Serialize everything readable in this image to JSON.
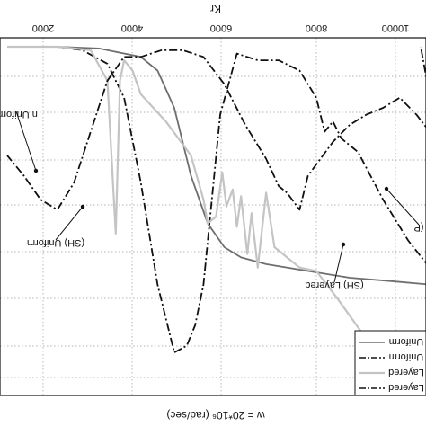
{
  "chart_data": {
    "type": "line",
    "orientation": "rotated-180",
    "xlabel": "w = 20*10⁶  (rad/sec)",
    "top_axis_label": "Kr",
    "top_ticks": [
      "2000",
      "4000",
      "6000",
      "8000",
      "10000"
    ],
    "xlim": [
      1000,
      11200
    ],
    "ylim": [
      0,
      1
    ],
    "grid": true,
    "legend_position": "bottom-right",
    "series": [
      {
        "name": "Uniform",
        "color": "#6e6e6e",
        "style": "solid",
        "x": [
          1000,
          2000,
          3000,
          4000,
          5000,
          5600,
          6000,
          6400,
          6800,
          7200,
          7600,
          8000,
          9000,
          10000,
          11200
        ],
        "y": [
          0.3,
          0.31,
          0.32,
          0.34,
          0.36,
          0.38,
          0.41,
          0.48,
          0.62,
          0.82,
          0.93,
          0.97,
          0.995,
          1.0,
          1.0
        ]
      },
      {
        "name": "Uniform",
        "color": "#111111",
        "style": "dashdot",
        "x": [
          1000,
          1600,
          2200,
          2800,
          3200,
          3400,
          3600,
          3800,
          4200,
          4700,
          5200,
          5700,
          6100,
          6300,
          6500,
          6700,
          6900,
          7200,
          7600,
          8000,
          8400,
          8800,
          9400,
          10000,
          11200
        ],
        "y": [
          0.35,
          0.43,
          0.55,
          0.69,
          0.73,
          0.78,
          0.75,
          0.85,
          0.93,
          0.96,
          0.96,
          0.98,
          0.8,
          0.55,
          0.3,
          0.18,
          0.12,
          0.1,
          0.3,
          0.6,
          0.85,
          0.95,
          0.99,
          1.0,
          1.0
        ]
      },
      {
        "name": "Layered",
        "color": "#c4c4c4",
        "style": "solid",
        "x": [
          1000,
          1800,
          2600,
          3300,
          3800,
          4200,
          4800,
          5000,
          5200,
          5350,
          5450,
          5600,
          5700,
          5800,
          5950,
          6050,
          6200,
          6400,
          6500,
          6800,
          7400,
          8000,
          8200,
          8400,
          8500,
          8600,
          8800,
          9200,
          10000,
          11200
        ],
        "y": [
          0.02,
          0.07,
          0.14,
          0.26,
          0.34,
          0.35,
          0.41,
          0.57,
          0.35,
          0.51,
          0.39,
          0.56,
          0.47,
          0.58,
          0.53,
          0.63,
          0.5,
          0.48,
          0.55,
          0.68,
          0.78,
          0.86,
          0.93,
          0.96,
          0.9,
          0.45,
          0.9,
          0.99,
          1.0,
          1.0
        ]
      },
      {
        "name": "Layered",
        "color": "#111111",
        "style": "dashdot",
        "x": [
          1000,
          1400,
          1800,
          2200,
          2600,
          3000,
          3400,
          4000,
          4200,
          4500,
          4700,
          5000,
          5500,
          6000,
          6500,
          7000,
          7500,
          8000,
          8400,
          8800,
          9200,
          9600,
          10000,
          10400,
          10800,
          11200
        ],
        "y": [
          0.75,
          0.8,
          0.85,
          0.82,
          0.8,
          0.77,
          0.72,
          0.62,
          0.52,
          0.57,
          0.59,
          0.67,
          0.77,
          0.89,
          0.97,
          0.99,
          0.99,
          0.97,
          0.97,
          0.9,
          0.75,
          0.6,
          0.52,
          0.55,
          0.62,
          0.68
        ]
      },
      {
        "name": "",
        "color": "#111111",
        "style": "dashdot",
        "x": [
          800,
          900,
          950,
          1000,
          1050,
          1100,
          1150,
          1300
        ],
        "y": [
          0.97,
          0.95,
          0.88,
          0.6,
          0.52,
          0.7,
          0.9,
          1.0
        ]
      }
    ],
    "legend": [
      "Uniform",
      "Uniform",
      "Layered",
      "Layered"
    ],
    "annotations": [
      {
        "text": "(SH) Uniform",
        "x": 7800,
        "y": 0.36
      },
      {
        "text": "(SH) Layered",
        "x": 3300,
        "y": 0.28
      },
      {
        "text": "(P",
        "x": 900,
        "y": 0.46
      },
      {
        "text": "n Uniform",
        "x": 10600,
        "y": 0.7
      }
    ]
  }
}
